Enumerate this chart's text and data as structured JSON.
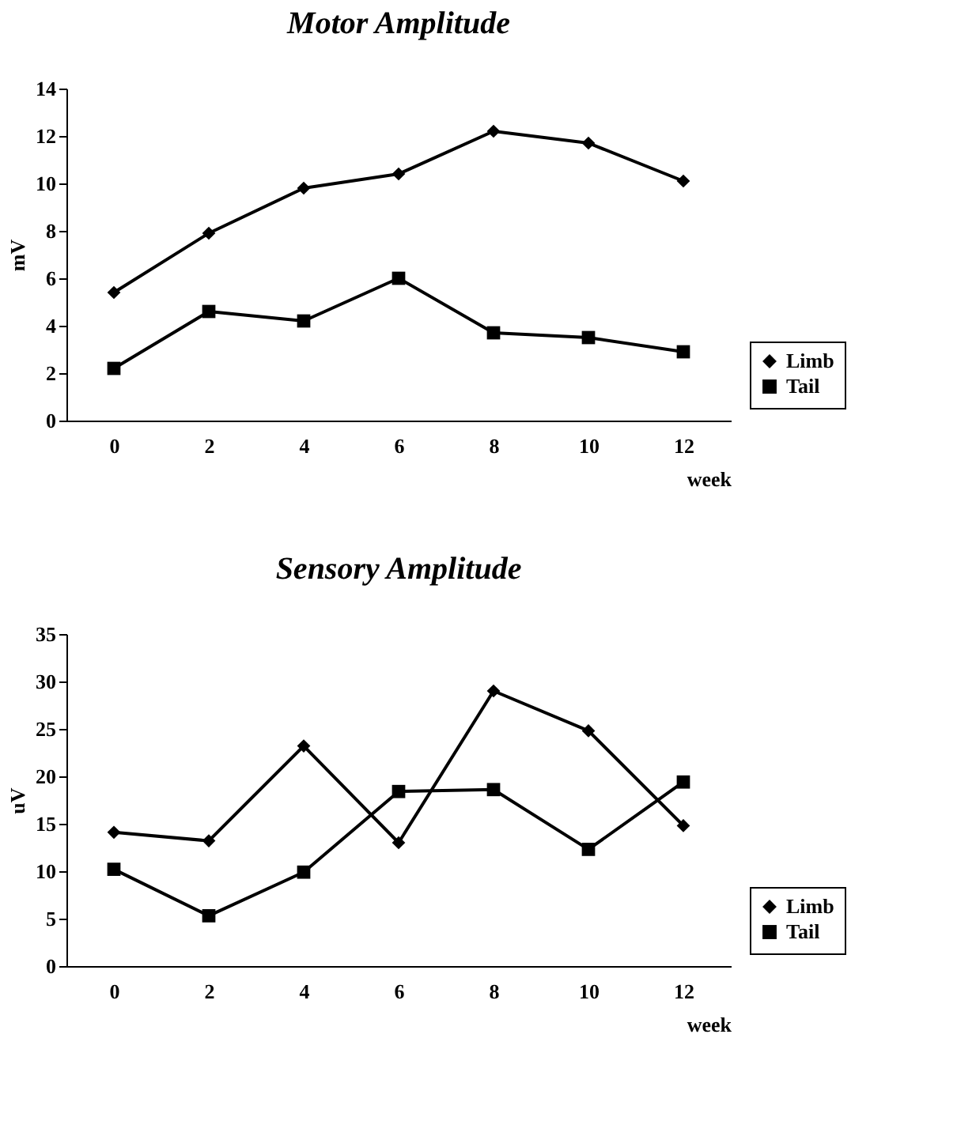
{
  "chart_data": [
    {
      "type": "line",
      "title": "Motor Amplitude",
      "xlabel": "week",
      "ylabel": "mV",
      "categories": [
        "0",
        "2",
        "4",
        "6",
        "8",
        "10",
        "12"
      ],
      "ylim": [
        0,
        14
      ],
      "yticks": [
        0,
        2,
        4,
        6,
        8,
        10,
        12,
        14
      ],
      "grid": false,
      "legend": "bottom right",
      "series": [
        {
          "name": "Limb",
          "color": "#000000",
          "marker": "diamond",
          "values": [
            5.4,
            7.9,
            9.8,
            10.4,
            12.2,
            11.7,
            10.1
          ]
        },
        {
          "name": "Tail",
          "color": "#000000",
          "marker": "square",
          "values": [
            2.2,
            4.6,
            4.2,
            6.0,
            3.7,
            3.5,
            2.9
          ]
        }
      ]
    },
    {
      "type": "line",
      "title": "Sensory Amplitude",
      "xlabel": "week",
      "ylabel": "uV",
      "categories": [
        "0",
        "2",
        "4",
        "6",
        "8",
        "10",
        "12"
      ],
      "ylim": [
        0,
        35
      ],
      "yticks": [
        0,
        5,
        10,
        15,
        20,
        25,
        30,
        35
      ],
      "grid": false,
      "legend": "bottom right",
      "series": [
        {
          "name": "Limb",
          "color": "#000000",
          "marker": "diamond",
          "values": [
            14.1,
            13.2,
            23.2,
            13.0,
            29.0,
            24.8,
            14.8
          ]
        },
        {
          "name": "Tail",
          "color": "#000000",
          "marker": "square",
          "values": [
            10.2,
            5.3,
            9.9,
            18.4,
            18.6,
            12.3,
            19.4
          ]
        }
      ]
    }
  ]
}
